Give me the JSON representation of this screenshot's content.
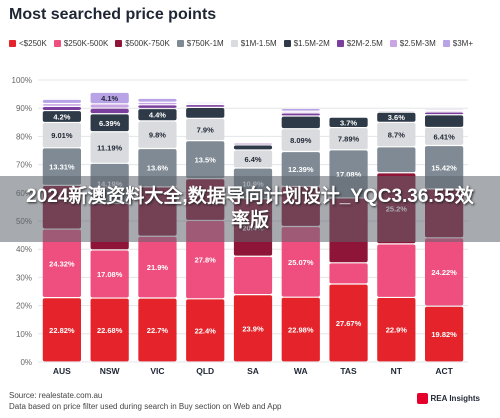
{
  "chart_data": {
    "type": "bar",
    "stacked": true,
    "orientation": "vertical",
    "title": "Most searched price points",
    "categories": [
      "AUS",
      "NSW",
      "VIC",
      "QLD",
      "SA",
      "WA",
      "TAS",
      "NT",
      "ACT"
    ],
    "ylim": [
      0,
      100
    ],
    "yticks": [
      "0%",
      "10%",
      "20%",
      "30%",
      "40%",
      "50%",
      "60%",
      "70%",
      "80%",
      "90%",
      "100%"
    ],
    "grid": true,
    "legend_position": "top",
    "series": [
      {
        "name": "<$250K",
        "color": "#e4242a",
        "values": [
          22.82,
          22.68,
          22.7,
          22.4,
          23.9,
          22.98,
          27.67,
          22.9,
          19.82
        ],
        "labels": [
          "22.82%",
          "22.68%",
          "22.7%",
          "22.4%",
          "23.9%",
          "22.98%",
          "27.67%",
          "22.9%",
          "19.82%"
        ]
      },
      {
        "name": "$250K-500K",
        "color": "#ee4f7e",
        "values": [
          24.32,
          17.08,
          21.9,
          27.8,
          13.6,
          25.07,
          7.5,
          19.0,
          24.22
        ],
        "labels": [
          "24.32%",
          "17.08%",
          "21.9%",
          "27.8%",
          "",
          "25.07%",
          "",
          "",
          "24.22%"
        ]
      },
      {
        "name": "$500K-750K",
        "color": "#8e1537",
        "values": [
          15.5,
          16.5,
          17.5,
          14.8,
          20.4,
          14.2,
          23.0,
          25.2,
          17.3
        ],
        "labels": [
          "",
          "",
          "",
          "",
          "20.4%",
          "",
          "",
          "25.2%",
          ""
        ]
      },
      {
        "name": "$750K-1M",
        "color": "#7f8a94",
        "values": [
          13.31,
          14.19,
          13.6,
          13.5,
          10.9,
          12.39,
          17.08,
          9.2,
          15.42
        ],
        "labels": [
          "13.31%",
          "14.19%",
          "13.6%",
          "13.5%",
          "10.9%",
          "12.39%",
          "17.08%",
          "",
          "15.42%"
        ]
      },
      {
        "name": "$1M-1.5M",
        "color": "#d9dbde",
        "values": [
          9.01,
          11.19,
          9.8,
          7.9,
          6.4,
          8.09,
          7.89,
          8.7,
          6.41
        ],
        "labels": [
          "9.01%",
          "11.19%",
          "9.8%",
          "7.9%",
          "6.4%",
          "8.09%",
          "7.89%",
          "8.7%",
          "6.41%"
        ]
      },
      {
        "name": "$1.5M-2M",
        "color": "#2e3a48",
        "values": [
          4.2,
          6.39,
          4.4,
          3.9,
          1.8,
          4.5,
          3.7,
          3.6,
          4.5
        ],
        "labels": [
          "4.2%",
          "6.39%",
          "4.4%",
          "",
          "",
          "",
          "3.7%",
          "3.6%",
          ""
        ]
      },
      {
        "name": "$2M-2.5M",
        "color": "#7b3f9e",
        "values": [
          1.5,
          2.0,
          1.3,
          1.0,
          0.6,
          1.1,
          0.3,
          0.5,
          1.0
        ],
        "labels": [
          "",
          "",
          "",
          "",
          "",
          "",
          "",
          "",
          ""
        ]
      },
      {
        "name": "$2.5M-3M",
        "color": "#c9a5e3",
        "values": [
          1.0,
          1.5,
          0.9,
          0.5,
          0.4,
          0.6,
          0.2,
          0.3,
          0.5
        ],
        "labels": [
          "",
          "",
          "",
          "",
          "",
          "",
          "",
          "",
          ""
        ]
      },
      {
        "name": "$3M+",
        "color": "#b7a3e6",
        "values": [
          1.5,
          4.1,
          1.4,
          0.5,
          0.4,
          1.0,
          0.3,
          0.3,
          0.5
        ],
        "labels": [
          "",
          "4.1%",
          "",
          "",
          "",
          "",
          "",
          "",
          ""
        ]
      }
    ]
  },
  "overlay_banner": "2024新澳资料大全,数据导向计划设计_YQC3.36.55效率版",
  "footer": {
    "source": "Source: realestate.com.au\nData based on price filter used during search in Buy section on Web and App",
    "brand": "REA Insights"
  }
}
